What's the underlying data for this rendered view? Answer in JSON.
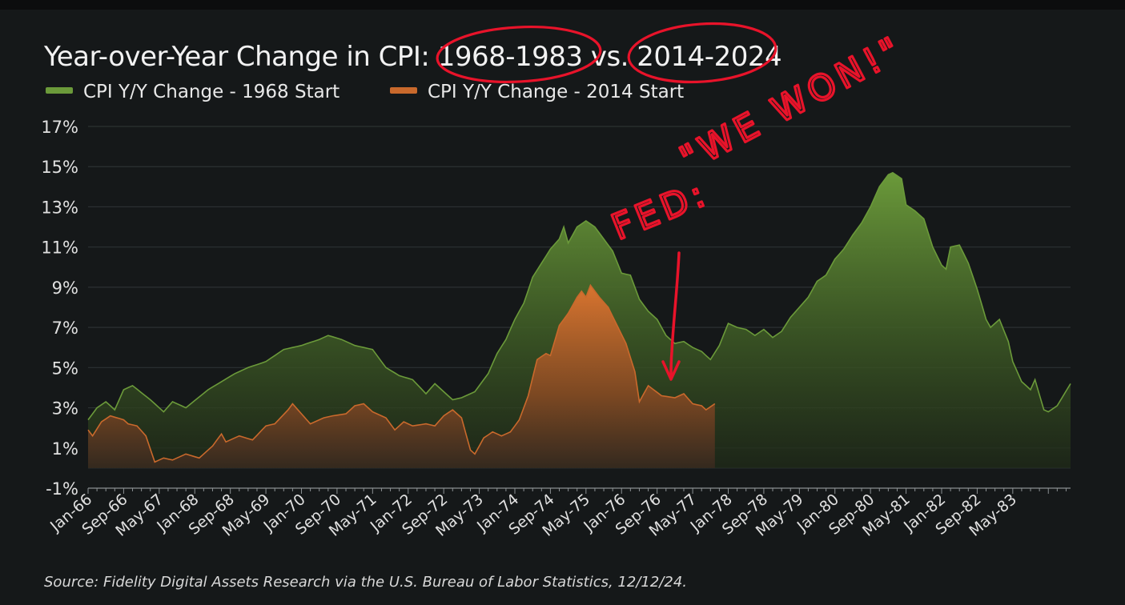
{
  "chart_data": {
    "type": "area",
    "title": "Year-over-Year Change in CPI: 1968-1983 vs. 2014-2024",
    "source": "Source: Fidelity Digital Assets Research via the U.S. Bureau of Labor Statistics, 12/12/24.",
    "ylim": [
      -1,
      17
    ],
    "yticks": [
      -1,
      1,
      3,
      5,
      7,
      9,
      11,
      13,
      15,
      17
    ],
    "ytick_labels": [
      "-1%",
      "1%",
      "3%",
      "5%",
      "7%",
      "9%",
      "11%",
      "13%",
      "15%",
      "17%"
    ],
    "x_months": 216,
    "x_tick_step_months": 8,
    "x_tick_labels": [
      "Jan-66",
      "Sep-66",
      "May-67",
      "Jan-68",
      "Sep-68",
      "May-69",
      "Jan-70",
      "Sep-70",
      "May-71",
      "Jan-72",
      "Sep-72",
      "May-73",
      "Jan-74",
      "Sep-74",
      "May-75",
      "Jan-76",
      "Sep-76",
      "May-77",
      "Jan-78",
      "Sep-78",
      "May-79",
      "Jan-80",
      "Sep-80",
      "May-81",
      "Jan-82",
      "Sep-82",
      "May-83"
    ],
    "legend": [
      "CPI Y/Y Change - 1968 Start",
      "CPI Y/Y Change - 2014 Start"
    ],
    "series": [
      {
        "name": "CPI Y/Y Change - 1968 Start",
        "color": "#6b9a3a",
        "anchors": [
          [
            0,
            2.4
          ],
          [
            2,
            3.0
          ],
          [
            4,
            3.3
          ],
          [
            6,
            2.9
          ],
          [
            8,
            3.9
          ],
          [
            10,
            4.1
          ],
          [
            14,
            3.4
          ],
          [
            17,
            2.8
          ],
          [
            19,
            3.3
          ],
          [
            22,
            3.0
          ],
          [
            27,
            3.9
          ],
          [
            30,
            4.3
          ],
          [
            33,
            4.7
          ],
          [
            36,
            5.0
          ],
          [
            40,
            5.3
          ],
          [
            44,
            5.9
          ],
          [
            48,
            6.1
          ],
          [
            52,
            6.4
          ],
          [
            54,
            6.6
          ],
          [
            57,
            6.4
          ],
          [
            60,
            6.1
          ],
          [
            64,
            5.9
          ],
          [
            67,
            5.0
          ],
          [
            70,
            4.6
          ],
          [
            73,
            4.4
          ],
          [
            76,
            3.7
          ],
          [
            78,
            4.2
          ],
          [
            82,
            3.4
          ],
          [
            84,
            3.5
          ],
          [
            87,
            3.8
          ],
          [
            90,
            4.7
          ],
          [
            92,
            5.7
          ],
          [
            94,
            6.4
          ],
          [
            96,
            7.4
          ],
          [
            98,
            8.2
          ],
          [
            100,
            9.5
          ],
          [
            102,
            10.2
          ],
          [
            104,
            10.9
          ],
          [
            106,
            11.4
          ],
          [
            107,
            12.0
          ],
          [
            108,
            11.2
          ],
          [
            110,
            12.0
          ],
          [
            112,
            12.3
          ],
          [
            114,
            12.0
          ],
          [
            116,
            11.4
          ],
          [
            118,
            10.8
          ],
          [
            120,
            9.7
          ],
          [
            122,
            9.6
          ],
          [
            124,
            8.4
          ],
          [
            126,
            7.8
          ],
          [
            128,
            7.4
          ],
          [
            130,
            6.6
          ],
          [
            132,
            6.2
          ],
          [
            134,
            6.3
          ],
          [
            136,
            6.0
          ],
          [
            138,
            5.8
          ],
          [
            140,
            5.4
          ],
          [
            142,
            6.1
          ],
          [
            144,
            7.2
          ],
          [
            146,
            7.0
          ],
          [
            148,
            6.9
          ],
          [
            150,
            6.6
          ],
          [
            152,
            6.9
          ],
          [
            154,
            6.5
          ],
          [
            156,
            6.8
          ],
          [
            158,
            7.5
          ],
          [
            160,
            8.0
          ],
          [
            162,
            8.5
          ],
          [
            164,
            9.3
          ],
          [
            166,
            9.6
          ],
          [
            168,
            10.4
          ],
          [
            170,
            10.9
          ],
          [
            172,
            11.6
          ],
          [
            174,
            12.2
          ],
          [
            176,
            13.0
          ],
          [
            178,
            14.0
          ],
          [
            180,
            14.6
          ],
          [
            181,
            14.7
          ],
          [
            183,
            14.4
          ],
          [
            184,
            13.1
          ],
          [
            186,
            12.8
          ],
          [
            188,
            12.4
          ],
          [
            190,
            11.0
          ],
          [
            192,
            10.1
          ],
          [
            193,
            9.9
          ],
          [
            194,
            11.0
          ],
          [
            196,
            11.1
          ],
          [
            198,
            10.2
          ],
          [
            200,
            8.9
          ],
          [
            202,
            7.4
          ],
          [
            203,
            7.0
          ],
          [
            205,
            7.4
          ],
          [
            207,
            6.3
          ],
          [
            208,
            5.3
          ],
          [
            210,
            4.3
          ],
          [
            212,
            3.9
          ],
          [
            213,
            4.4
          ],
          [
            215,
            2.9
          ],
          [
            216,
            2.8
          ],
          [
            218,
            3.1
          ],
          [
            221,
            4.2
          ]
        ]
      },
      {
        "name": "CPI Y/Y Change - 2014 Start",
        "color": "#c9692c",
        "anchors": [
          [
            0,
            1.9
          ],
          [
            1,
            1.6
          ],
          [
            3,
            2.3
          ],
          [
            5,
            2.6
          ],
          [
            8,
            2.4
          ],
          [
            9,
            2.2
          ],
          [
            11,
            2.1
          ],
          [
            13,
            1.6
          ],
          [
            15,
            0.3
          ],
          [
            17,
            0.5
          ],
          [
            19,
            0.4
          ],
          [
            22,
            0.7
          ],
          [
            25,
            0.5
          ],
          [
            28,
            1.1
          ],
          [
            30,
            1.7
          ],
          [
            31,
            1.3
          ],
          [
            34,
            1.6
          ],
          [
            37,
            1.4
          ],
          [
            40,
            2.1
          ],
          [
            42,
            2.2
          ],
          [
            45,
            2.9
          ],
          [
            46,
            3.2
          ],
          [
            48,
            2.7
          ],
          [
            50,
            2.2
          ],
          [
            53,
            2.5
          ],
          [
            55,
            2.6
          ],
          [
            58,
            2.7
          ],
          [
            60,
            3.1
          ],
          [
            62,
            3.2
          ],
          [
            64,
            2.8
          ],
          [
            67,
            2.5
          ],
          [
            69,
            1.9
          ],
          [
            71,
            2.3
          ],
          [
            73,
            2.1
          ],
          [
            76,
            2.2
          ],
          [
            78,
            2.1
          ],
          [
            80,
            2.6
          ],
          [
            82,
            2.9
          ],
          [
            84,
            2.5
          ],
          [
            86,
            0.9
          ],
          [
            87,
            0.7
          ],
          [
            89,
            1.5
          ],
          [
            91,
            1.8
          ],
          [
            93,
            1.6
          ],
          [
            95,
            1.8
          ],
          [
            97,
            2.4
          ],
          [
            99,
            3.6
          ],
          [
            101,
            5.4
          ],
          [
            103,
            5.7
          ],
          [
            104,
            5.6
          ],
          [
            106,
            7.1
          ],
          [
            108,
            7.7
          ],
          [
            110,
            8.5
          ],
          [
            111,
            8.8
          ],
          [
            112,
            8.5
          ],
          [
            113,
            9.1
          ],
          [
            115,
            8.5
          ],
          [
            117,
            8.0
          ],
          [
            119,
            7.1
          ],
          [
            121,
            6.2
          ],
          [
            123,
            4.8
          ],
          [
            124,
            3.3
          ],
          [
            126,
            4.1
          ],
          [
            129,
            3.6
          ],
          [
            132,
            3.5
          ],
          [
            134,
            3.7
          ],
          [
            136,
            3.2
          ],
          [
            138,
            3.1
          ],
          [
            139,
            2.9
          ],
          [
            141,
            3.2
          ]
        ]
      }
    ],
    "annotation": {
      "text_top": "\"WE WON!\"",
      "text_bottom": "FED:",
      "circled": [
        "1968-1983",
        "2014-2024"
      ],
      "color": "#e8132a"
    }
  }
}
